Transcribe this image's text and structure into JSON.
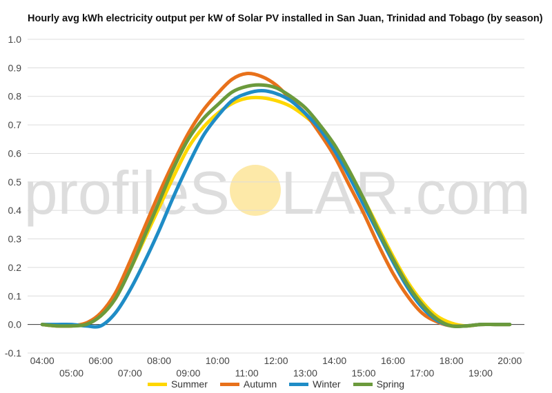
{
  "watermark": {
    "text_left": "profileS",
    "text_right": "LAR.com",
    "sun_color": "#fde9a8",
    "text_color": "#dddddd"
  },
  "chart_data": {
    "type": "line",
    "title": "Hourly avg kWh electricity output per kW of Solar PV installed in San Juan, Trinidad and Tobago (by season)",
    "xlabel": "",
    "ylabel": "",
    "ylim": [
      -0.1,
      1.0
    ],
    "yticks": [
      "1.0",
      "0.9",
      "0.8",
      "0.7",
      "0.6",
      "0.5",
      "0.4",
      "0.3",
      "0.2",
      "0.1",
      "0.0",
      "-0.1"
    ],
    "xticks_upper": [
      "04:00",
      "06:00",
      "08:00",
      "10:00",
      "12:00",
      "14:00",
      "16:00",
      "18:00",
      "20:00"
    ],
    "xticks_lower": [
      "05:00",
      "07:00",
      "09:00",
      "11:00",
      "13:00",
      "15:00",
      "17:00",
      "19:00"
    ],
    "grid": true,
    "legend_position": "bottom",
    "x": [
      4,
      4.5,
      5,
      5.5,
      6,
      6.5,
      7,
      7.5,
      8,
      8.5,
      9,
      9.5,
      10,
      10.5,
      11,
      11.5,
      12,
      12.5,
      13,
      13.5,
      14,
      14.5,
      15,
      15.5,
      16,
      16.5,
      17,
      17.5,
      18,
      18.5,
      19,
      19.5,
      20
    ],
    "series": [
      {
        "name": "Summer",
        "color": "#ffd700",
        "values": [
          0.0,
          -0.005,
          -0.005,
          0.005,
          0.03,
          0.09,
          0.19,
          0.3,
          0.41,
          0.52,
          0.62,
          0.69,
          0.74,
          0.775,
          0.793,
          0.795,
          0.785,
          0.765,
          0.73,
          0.685,
          0.62,
          0.54,
          0.44,
          0.34,
          0.24,
          0.15,
          0.08,
          0.03,
          0.005,
          -0.005,
          0.0,
          0.0,
          0.0
        ]
      },
      {
        "name": "Autumn",
        "color": "#e8711b",
        "values": [
          0.0,
          -0.005,
          -0.005,
          0.005,
          0.04,
          0.11,
          0.22,
          0.34,
          0.46,
          0.57,
          0.67,
          0.75,
          0.81,
          0.86,
          0.88,
          0.87,
          0.84,
          0.79,
          0.74,
          0.67,
          0.59,
          0.49,
          0.39,
          0.28,
          0.18,
          0.1,
          0.04,
          0.01,
          -0.005,
          -0.005,
          0.0,
          0.0,
          0.0
        ]
      },
      {
        "name": "Winter",
        "color": "#1f8cc6",
        "values": [
          0.0,
          0.0,
          0.0,
          -0.005,
          -0.005,
          0.04,
          0.12,
          0.22,
          0.33,
          0.45,
          0.56,
          0.66,
          0.73,
          0.785,
          0.81,
          0.82,
          0.81,
          0.785,
          0.74,
          0.685,
          0.61,
          0.52,
          0.42,
          0.32,
          0.22,
          0.13,
          0.06,
          0.015,
          -0.005,
          -0.005,
          0.0,
          0.0,
          0.0
        ]
      },
      {
        "name": "Spring",
        "color": "#6b9a3c",
        "values": [
          0.0,
          -0.005,
          -0.005,
          0.0,
          0.03,
          0.09,
          0.19,
          0.31,
          0.43,
          0.55,
          0.65,
          0.72,
          0.77,
          0.815,
          0.835,
          0.84,
          0.83,
          0.8,
          0.76,
          0.7,
          0.63,
          0.54,
          0.44,
          0.33,
          0.23,
          0.14,
          0.07,
          0.02,
          -0.005,
          -0.005,
          0.0,
          0.0,
          0.0
        ]
      }
    ]
  }
}
